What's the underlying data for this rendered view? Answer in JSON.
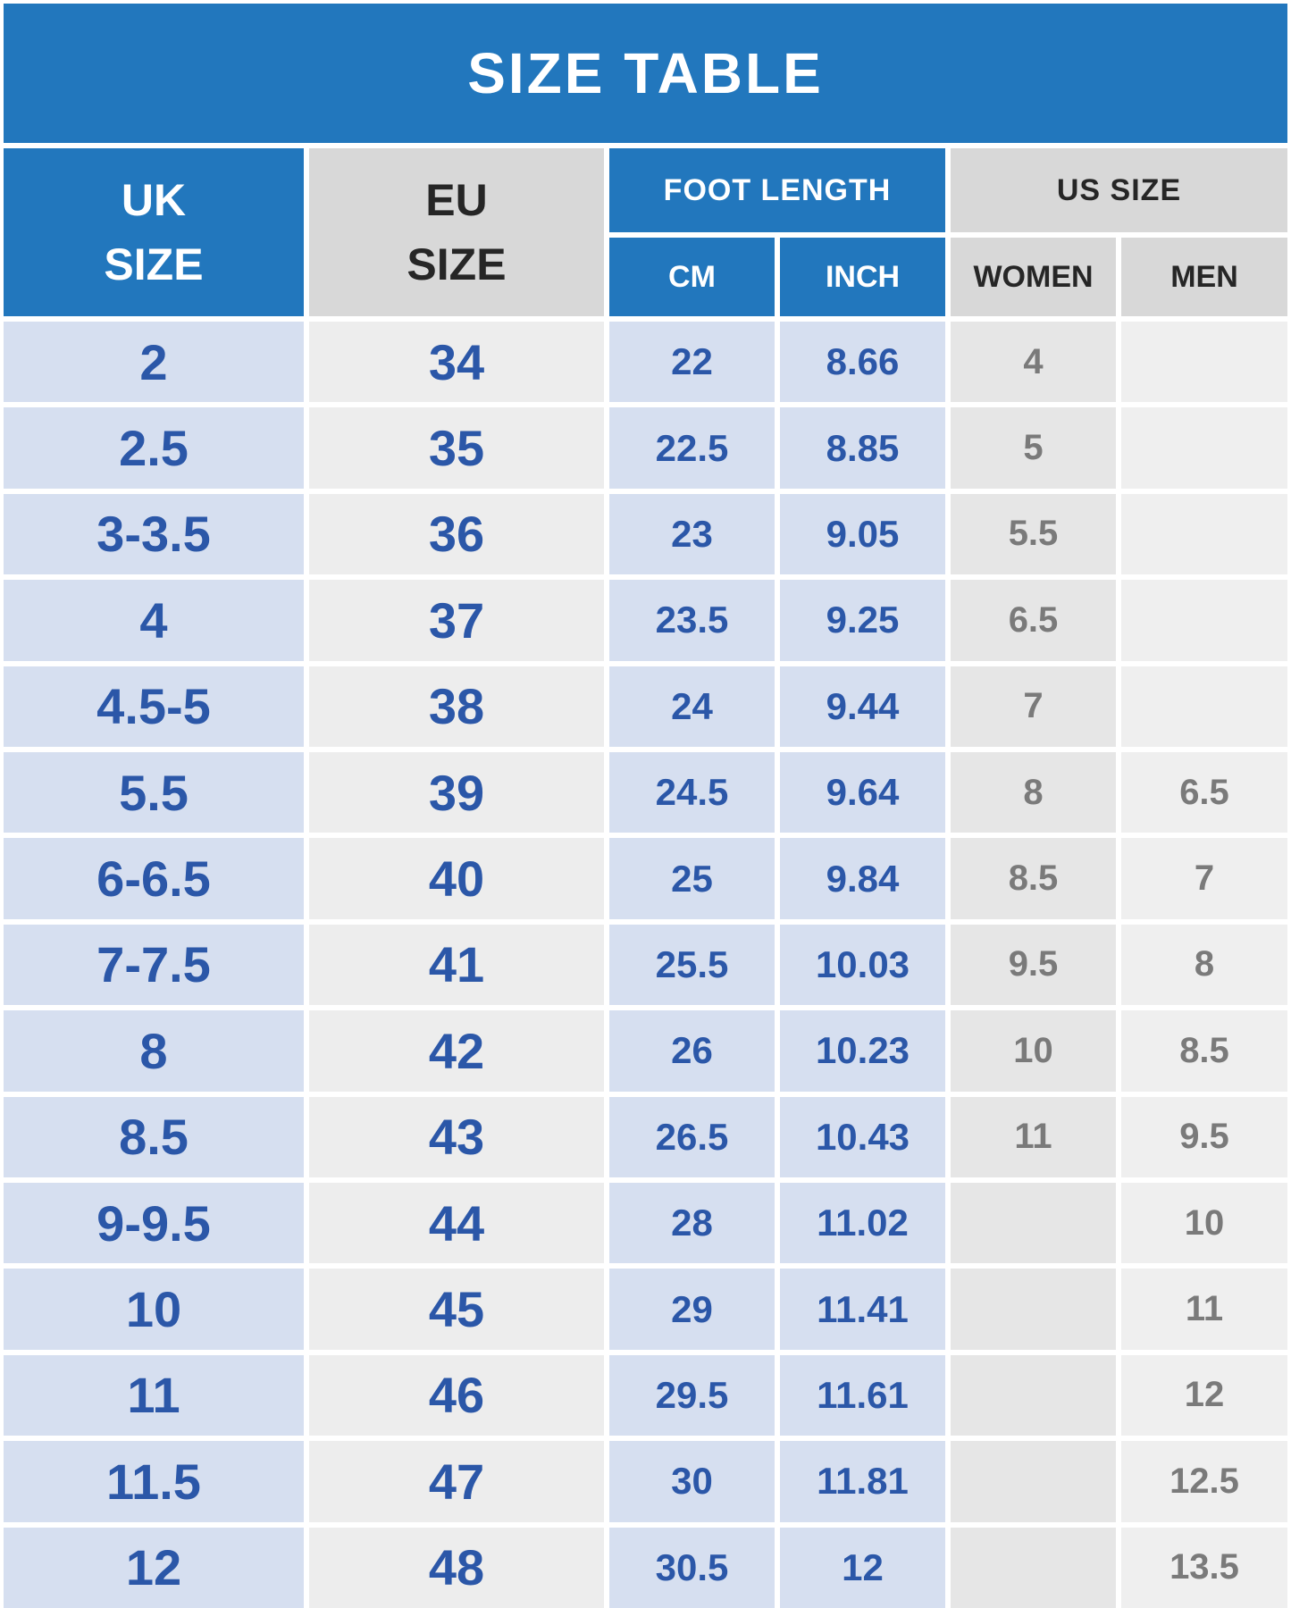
{
  "chart_data": {
    "type": "table",
    "title": "SIZE TABLE",
    "column_groups": [
      {
        "label": "UK SIZE",
        "lines": [
          "UK",
          "SIZE"
        ]
      },
      {
        "label": "EU SIZE",
        "lines": [
          "EU",
          "SIZE"
        ]
      },
      {
        "label": "FOOT LENGTH",
        "subcolumns": [
          "CM",
          "INCH"
        ]
      },
      {
        "label": "US SIZE",
        "subcolumns": [
          "WOMEN",
          "MEN"
        ]
      }
    ],
    "columns": [
      "UK SIZE",
      "EU SIZE",
      "FOOT LENGTH CM",
      "FOOT LENGTH INCH",
      "US SIZE WOMEN",
      "US SIZE MEN"
    ],
    "rows": [
      {
        "uk": "2",
        "eu": "34",
        "cm": "22",
        "inch": "8.66",
        "women": "4",
        "men": ""
      },
      {
        "uk": "2.5",
        "eu": "35",
        "cm": "22.5",
        "inch": "8.85",
        "women": "5",
        "men": ""
      },
      {
        "uk": "3-3.5",
        "eu": "36",
        "cm": "23",
        "inch": "9.05",
        "women": "5.5",
        "men": ""
      },
      {
        "uk": "4",
        "eu": "37",
        "cm": "23.5",
        "inch": "9.25",
        "women": "6.5",
        "men": ""
      },
      {
        "uk": "4.5-5",
        "eu": "38",
        "cm": "24",
        "inch": "9.44",
        "women": "7",
        "men": ""
      },
      {
        "uk": "5.5",
        "eu": "39",
        "cm": "24.5",
        "inch": "9.64",
        "women": "8",
        "men": "6.5"
      },
      {
        "uk": "6-6.5",
        "eu": "40",
        "cm": "25",
        "inch": "9.84",
        "women": "8.5",
        "men": "7"
      },
      {
        "uk": "7-7.5",
        "eu": "41",
        "cm": "25.5",
        "inch": "10.03",
        "women": "9.5",
        "men": "8"
      },
      {
        "uk": "8",
        "eu": "42",
        "cm": "26",
        "inch": "10.23",
        "women": "10",
        "men": "8.5"
      },
      {
        "uk": "8.5",
        "eu": "43",
        "cm": "26.5",
        "inch": "10.43",
        "women": "11",
        "men": "9.5"
      },
      {
        "uk": "9-9.5",
        "eu": "44",
        "cm": "28",
        "inch": "11.02",
        "women": "",
        "men": "10"
      },
      {
        "uk": "10",
        "eu": "45",
        "cm": "29",
        "inch": "11.41",
        "women": "",
        "men": "11"
      },
      {
        "uk": "11",
        "eu": "46",
        "cm": "29.5",
        "inch": "11.61",
        "women": "",
        "men": "12"
      },
      {
        "uk": "11.5",
        "eu": "47",
        "cm": "30",
        "inch": "11.81",
        "women": "",
        "men": "12.5"
      },
      {
        "uk": "12",
        "eu": "48",
        "cm": "30.5",
        "inch": "12",
        "women": "",
        "men": "13.5"
      }
    ]
  },
  "colors": {
    "title-blue": "#2277bd",
    "header-gray": "#d8d8d8",
    "cell-blue": "#d6dff0",
    "cell-gray": "#ededed",
    "cell-women": "#e6e6e6",
    "cell-men": "#efefef",
    "text-blue": "#2b57a8",
    "text-gray": "#7a7a7a",
    "text-dark": "#262626"
  }
}
